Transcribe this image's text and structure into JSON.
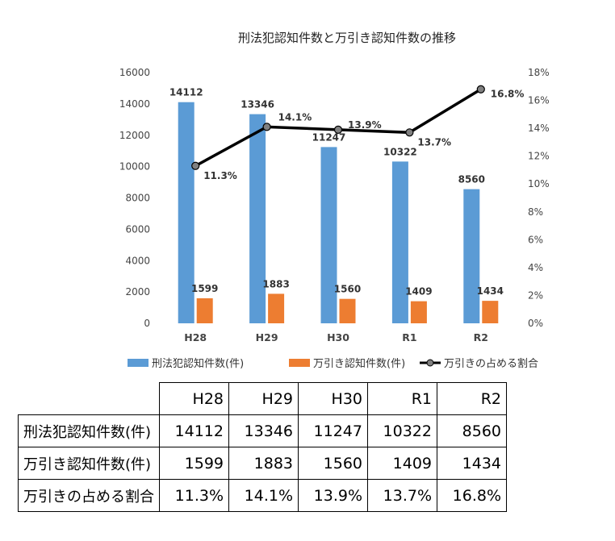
{
  "chart_data": {
    "type": "bar",
    "title": "刑法犯認知件数と万引き認知件数の推移",
    "categories": [
      "H28",
      "H29",
      "H30",
      "R1",
      "R2"
    ],
    "series": [
      {
        "name": "刑法犯認知件数(件)",
        "kind": "bar",
        "axis": "left",
        "color": "#5B9BD5",
        "values": [
          14112,
          13346,
          11247,
          10322,
          8560
        ],
        "labels": [
          "14112",
          "13346",
          "11247",
          "10322",
          "8560"
        ]
      },
      {
        "name": "万引き認知件数(件)",
        "kind": "bar",
        "axis": "left",
        "color": "#ED7D31",
        "values": [
          1599,
          1883,
          1560,
          1409,
          1434
        ],
        "labels": [
          "1599",
          "1883",
          "1560",
          "1409",
          "1434"
        ]
      },
      {
        "name": "万引きの占める割合",
        "kind": "line",
        "axis": "right",
        "color": "#000000",
        "values": [
          11.3,
          14.1,
          13.9,
          13.7,
          16.8
        ],
        "labels": [
          "11.3%",
          "14.1%",
          "13.9%",
          "13.7%",
          "16.8%"
        ]
      }
    ],
    "ylim_left": [
      0,
      16000
    ],
    "ylim_right": [
      0,
      18
    ],
    "left_ticks": [
      "0",
      "2000",
      "4000",
      "6000",
      "8000",
      "10000",
      "12000",
      "14000",
      "16000"
    ],
    "right_ticks": [
      "0%",
      "2%",
      "4%",
      "6%",
      "8%",
      "10%",
      "12%",
      "14%",
      "16%",
      "18%"
    ],
    "grid": false,
    "legend_position": "bottom"
  },
  "table": {
    "headers": [
      "H28",
      "H29",
      "H30",
      "R1",
      "R2"
    ],
    "rows": [
      {
        "label": "刑法犯認知件数(件)",
        "cells": [
          "14112",
          "13346",
          "11247",
          "10322",
          "8560"
        ]
      },
      {
        "label": "万引き認知件数(件)",
        "cells": [
          "1599",
          "1883",
          "1560",
          "1409",
          "1434"
        ]
      },
      {
        "label": "万引きの占める割合",
        "cells": [
          "11.3%",
          "14.1%",
          "13.9%",
          "13.7%",
          "16.8%"
        ]
      }
    ]
  }
}
